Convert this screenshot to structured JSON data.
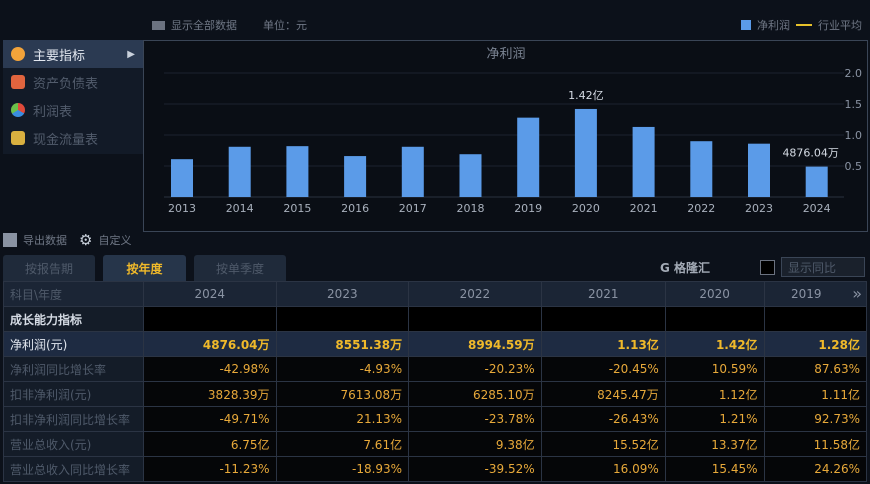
{
  "toolbar": {
    "show_all": "显示全部数据",
    "unit": "单位：元"
  },
  "legend": {
    "series": "净利润",
    "avg": "行业平均",
    "series_color": "#5b9be8",
    "avg_color": "#e7c12a"
  },
  "menu": [
    {
      "label": "主要指标",
      "icon": "gear-flower-icon"
    },
    {
      "label": "资产负债表",
      "icon": "document-icon"
    },
    {
      "label": "利润表",
      "icon": "pie-icon"
    },
    {
      "label": "现金流量表",
      "icon": "coins-icon"
    }
  ],
  "chart_data": {
    "type": "bar",
    "title": "净利润",
    "categories": [
      "2013",
      "2014",
      "2015",
      "2016",
      "2017",
      "2018",
      "2019",
      "2020",
      "2021",
      "2022",
      "2023",
      "2024"
    ],
    "series": [
      {
        "name": "净利润",
        "values": [
          0.61,
          0.81,
          0.82,
          0.66,
          0.81,
          0.69,
          1.28,
          1.42,
          1.13,
          0.9,
          0.86,
          0.49
        ]
      }
    ],
    "ylim": [
      0,
      2.0
    ],
    "yticks": [
      "0.5",
      "1.0",
      "1.5",
      "2.0"
    ],
    "yaxis_position": "right",
    "ylabel_unit": "亿",
    "annotations": [
      {
        "category": "2020",
        "text": "1.42亿"
      },
      {
        "category": "2024",
        "text": "4876.04万"
      }
    ],
    "grid": true
  },
  "tools": {
    "export": "导出数据",
    "custom": "自定义"
  },
  "tabs": [
    {
      "label": "按报告期"
    },
    {
      "label": "按年度"
    },
    {
      "label": "按单季度"
    }
  ],
  "yoy_label": "显示同比",
  "table": {
    "header": [
      "科目\\年度",
      "2024",
      "2023",
      "2022",
      "2021",
      "2020",
      "2019"
    ],
    "rows": [
      {
        "label": "成长能力指标",
        "values": [
          "",
          "",
          "",
          "",
          "",
          ""
        ]
      },
      {
        "label": "净利润(元)",
        "values": [
          "4876.04万",
          "8551.38万",
          "8994.59万",
          "1.13亿",
          "1.42亿",
          "1.28亿"
        ]
      },
      {
        "label": "净利润同比增长率",
        "values": [
          "-42.98%",
          "-4.93%",
          "-20.23%",
          "-20.45%",
          "10.59%",
          "87.63%"
        ]
      },
      {
        "label": "扣非净利润(元)",
        "values": [
          "3828.39万",
          "7613.08万",
          "6285.10万",
          "8245.47万",
          "1.12亿",
          "1.11亿"
        ]
      },
      {
        "label": "扣非净利润同比增长率",
        "values": [
          "-49.71%",
          "21.13%",
          "-23.78%",
          "-26.43%",
          "1.21%",
          "92.73%"
        ]
      },
      {
        "label": "营业总收入(元)",
        "values": [
          "6.75亿",
          "7.61亿",
          "9.38亿",
          "15.52亿",
          "13.37亿",
          "11.58亿"
        ]
      },
      {
        "label": "营业总收入同比增长率",
        "values": [
          "-11.23%",
          "-18.93%",
          "-39.52%",
          "16.09%",
          "15.45%",
          "24.26%"
        ]
      }
    ]
  },
  "watermark": "格隆汇"
}
